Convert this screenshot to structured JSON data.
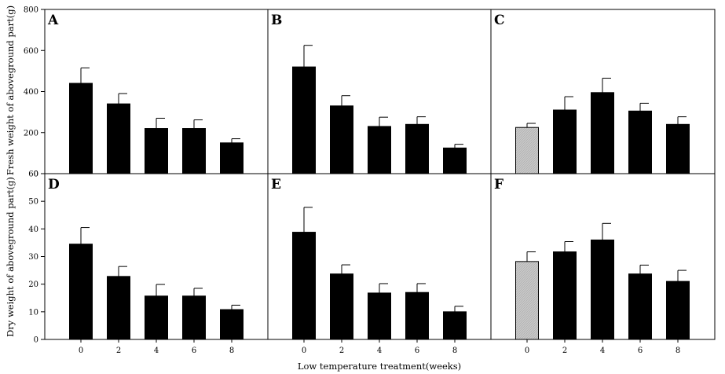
{
  "figure": {
    "shared_ylabel_top": "Fresh weight of aboveground part(g)",
    "shared_ylabel_bottom": "Dry weight of aboveground part(g)",
    "shared_xlabel": "Low temperature treatment(weeks)"
  },
  "colors": {
    "bar_dark": "#000000",
    "bar_control": "#c8c8c8",
    "axis": "#000000"
  },
  "chart_data": [
    {
      "panel": "A",
      "type": "bar",
      "categories": [
        "0",
        "2",
        "4",
        "6",
        "8"
      ],
      "values": [
        440,
        340,
        220,
        220,
        150
      ],
      "errors": [
        75,
        50,
        50,
        42,
        20
      ],
      "ylim": [
        0,
        800
      ],
      "yticks": [
        "0",
        "200",
        "400",
        "600",
        "800"
      ],
      "bar_colors": [
        "#000000",
        "#000000",
        "#000000",
        "#000000",
        "#000000"
      ]
    },
    {
      "panel": "B",
      "type": "bar",
      "categories": [
        "0",
        "2",
        "4",
        "6",
        "8"
      ],
      "values": [
        520,
        330,
        230,
        240,
        125
      ],
      "errors": [
        105,
        50,
        45,
        37,
        18
      ],
      "ylim": [
        0,
        800
      ],
      "bar_colors": [
        "#000000",
        "#000000",
        "#000000",
        "#000000",
        "#000000"
      ]
    },
    {
      "panel": "C",
      "type": "bar",
      "categories": [
        "0",
        "2",
        "4",
        "6",
        "8"
      ],
      "values": [
        225,
        310,
        395,
        305,
        240
      ],
      "errors": [
        20,
        65,
        70,
        38,
        37
      ],
      "ylim": [
        0,
        800
      ],
      "bar_colors": [
        "#c8c8c8",
        "#000000",
        "#000000",
        "#000000",
        "#000000"
      ]
    },
    {
      "panel": "D",
      "type": "bar",
      "categories": [
        "0",
        "2",
        "4",
        "6",
        "8"
      ],
      "values": [
        34.5,
        22.8,
        15.7,
        15.7,
        10.8
      ],
      "errors": [
        6.0,
        3.6,
        4.2,
        2.8,
        1.6
      ],
      "ylim": [
        0,
        60
      ],
      "yticks": [
        "0",
        "10",
        "20",
        "30",
        "40",
        "50",
        "60"
      ],
      "xticks": [
        "0",
        "2",
        "4",
        "6",
        "8"
      ],
      "bar_colors": [
        "#000000",
        "#000000",
        "#000000",
        "#000000",
        "#000000"
      ]
    },
    {
      "panel": "E",
      "type": "bar",
      "categories": [
        "0",
        "2",
        "4",
        "6",
        "8"
      ],
      "values": [
        38.8,
        23.7,
        16.8,
        17.0,
        10.0
      ],
      "errors": [
        9.0,
        3.3,
        3.4,
        3.2,
        2.0
      ],
      "ylim": [
        0,
        60
      ],
      "xticks": [
        "0",
        "2",
        "4",
        "6",
        "8"
      ],
      "bar_colors": [
        "#000000",
        "#000000",
        "#000000",
        "#000000",
        "#000000"
      ]
    },
    {
      "panel": "F",
      "type": "bar",
      "categories": [
        "0",
        "2",
        "4",
        "6",
        "8"
      ],
      "values": [
        28.2,
        31.7,
        36.0,
        23.7,
        21.0
      ],
      "errors": [
        3.5,
        3.7,
        6.0,
        3.2,
        4.0
      ],
      "ylim": [
        0,
        60
      ],
      "xticks": [
        "0",
        "2",
        "4",
        "6",
        "8"
      ],
      "bar_colors": [
        "#c8c8c8",
        "#000000",
        "#000000",
        "#000000",
        "#000000"
      ]
    }
  ]
}
